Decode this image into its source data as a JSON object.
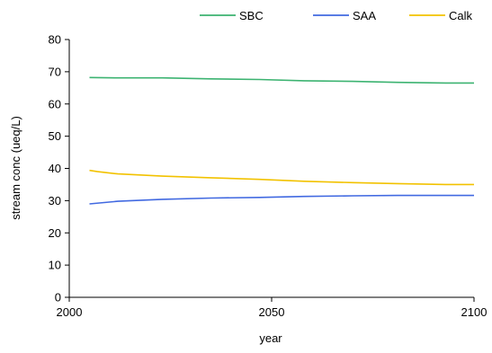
{
  "chart_data": {
    "type": "line",
    "title": "",
    "xlabel": "year",
    "ylabel": "stream conc (ueq/L)",
    "xlim": [
      2000,
      2100
    ],
    "ylim": [
      0,
      80
    ],
    "x_ticks": [
      "2000",
      "2050",
      "2100"
    ],
    "y_ticks": [
      "0",
      "10",
      "20",
      "30",
      "40",
      "50",
      "60",
      "70",
      "80"
    ],
    "grid": false,
    "legend_position": "top-right",
    "series": [
      {
        "name": "SBC",
        "color": "#3CB371",
        "x": [
          2005,
          2012,
          2023,
          2035,
          2047,
          2058,
          2070,
          2081,
          2093,
          2100
        ],
        "y": [
          68.2,
          68.1,
          68.1,
          67.8,
          67.6,
          67.2,
          67.0,
          66.7,
          66.5,
          66.5
        ]
      },
      {
        "name": "SAA",
        "color": "#4169E1",
        "x": [
          2005,
          2012,
          2023,
          2035,
          2047,
          2058,
          2070,
          2081,
          2093,
          2100
        ],
        "y": [
          29.0,
          29.8,
          30.4,
          30.8,
          31.0,
          31.3,
          31.5,
          31.6,
          31.6,
          31.6
        ]
      },
      {
        "name": "Calk",
        "color": "#F2C200",
        "x": [
          2005,
          2007,
          2012,
          2023,
          2035,
          2047,
          2058,
          2070,
          2081,
          2093,
          2100
        ],
        "y": [
          39.4,
          39.0,
          38.3,
          37.6,
          37.1,
          36.6,
          36.0,
          35.6,
          35.3,
          35.0,
          35.0
        ]
      }
    ]
  }
}
